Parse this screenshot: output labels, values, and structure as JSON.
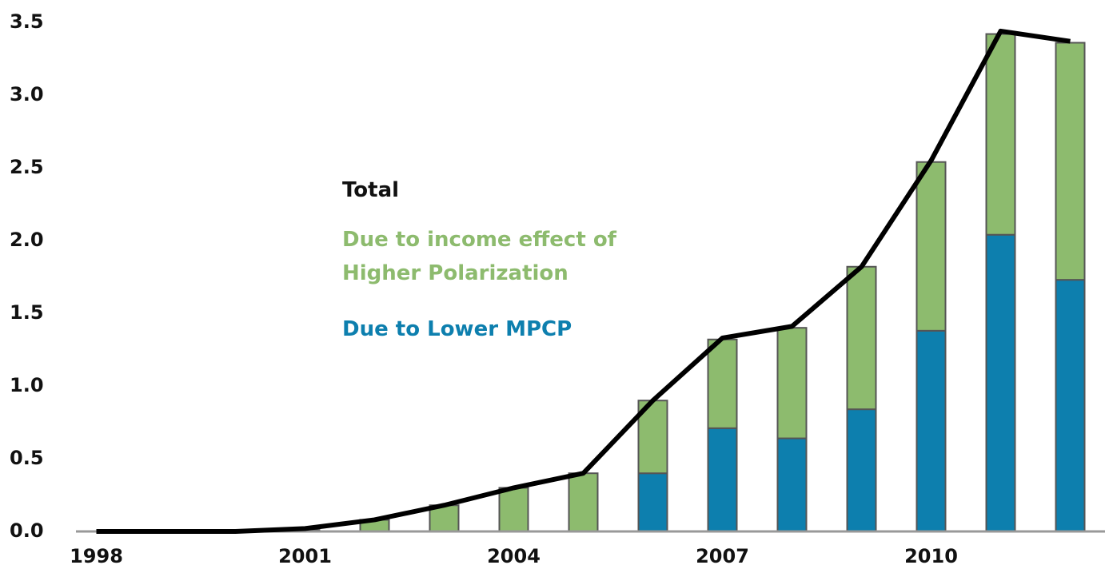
{
  "chart_data": {
    "type": "bar",
    "categories": [
      "1998",
      null,
      null,
      "2001",
      null,
      null,
      "2004",
      null,
      null,
      "2007",
      null,
      null,
      "2010",
      null,
      null
    ],
    "series": [
      {
        "name": "Due to Lower MPCP",
        "color": "#0d7fae",
        "values": [
          0,
          0,
          0,
          0,
          0,
          0,
          0,
          0,
          0.4,
          0.71,
          0.64,
          0.84,
          1.38,
          2.04,
          1.73
        ]
      },
      {
        "name": "Due to income effect of Higher Polarization",
        "color": "#8dbb6e",
        "values": [
          0,
          0,
          0,
          0.01,
          0.08,
          0.18,
          0.3,
          0.4,
          0.5,
          0.61,
          0.76,
          0.98,
          1.16,
          1.38,
          1.63
        ]
      },
      {
        "name": "Total",
        "type": "line",
        "color": "#000000",
        "values": [
          0,
          0,
          0,
          0.02,
          0.08,
          0.18,
          0.3,
          0.4,
          0.9,
          1.33,
          1.41,
          1.82,
          2.55,
          3.44,
          3.37
        ]
      }
    ],
    "ylim": [
      0,
      3.5
    ],
    "yticks": [
      {
        "value": 0,
        "label": "0.0"
      },
      0.5,
      {
        "value": 1,
        "label": "1.0"
      },
      1.5,
      {
        "value": 2,
        "label": "2.0"
      },
      2.5,
      {
        "value": 3,
        "label": "3.0"
      },
      3.5
    ],
    "grid": false
  }
}
